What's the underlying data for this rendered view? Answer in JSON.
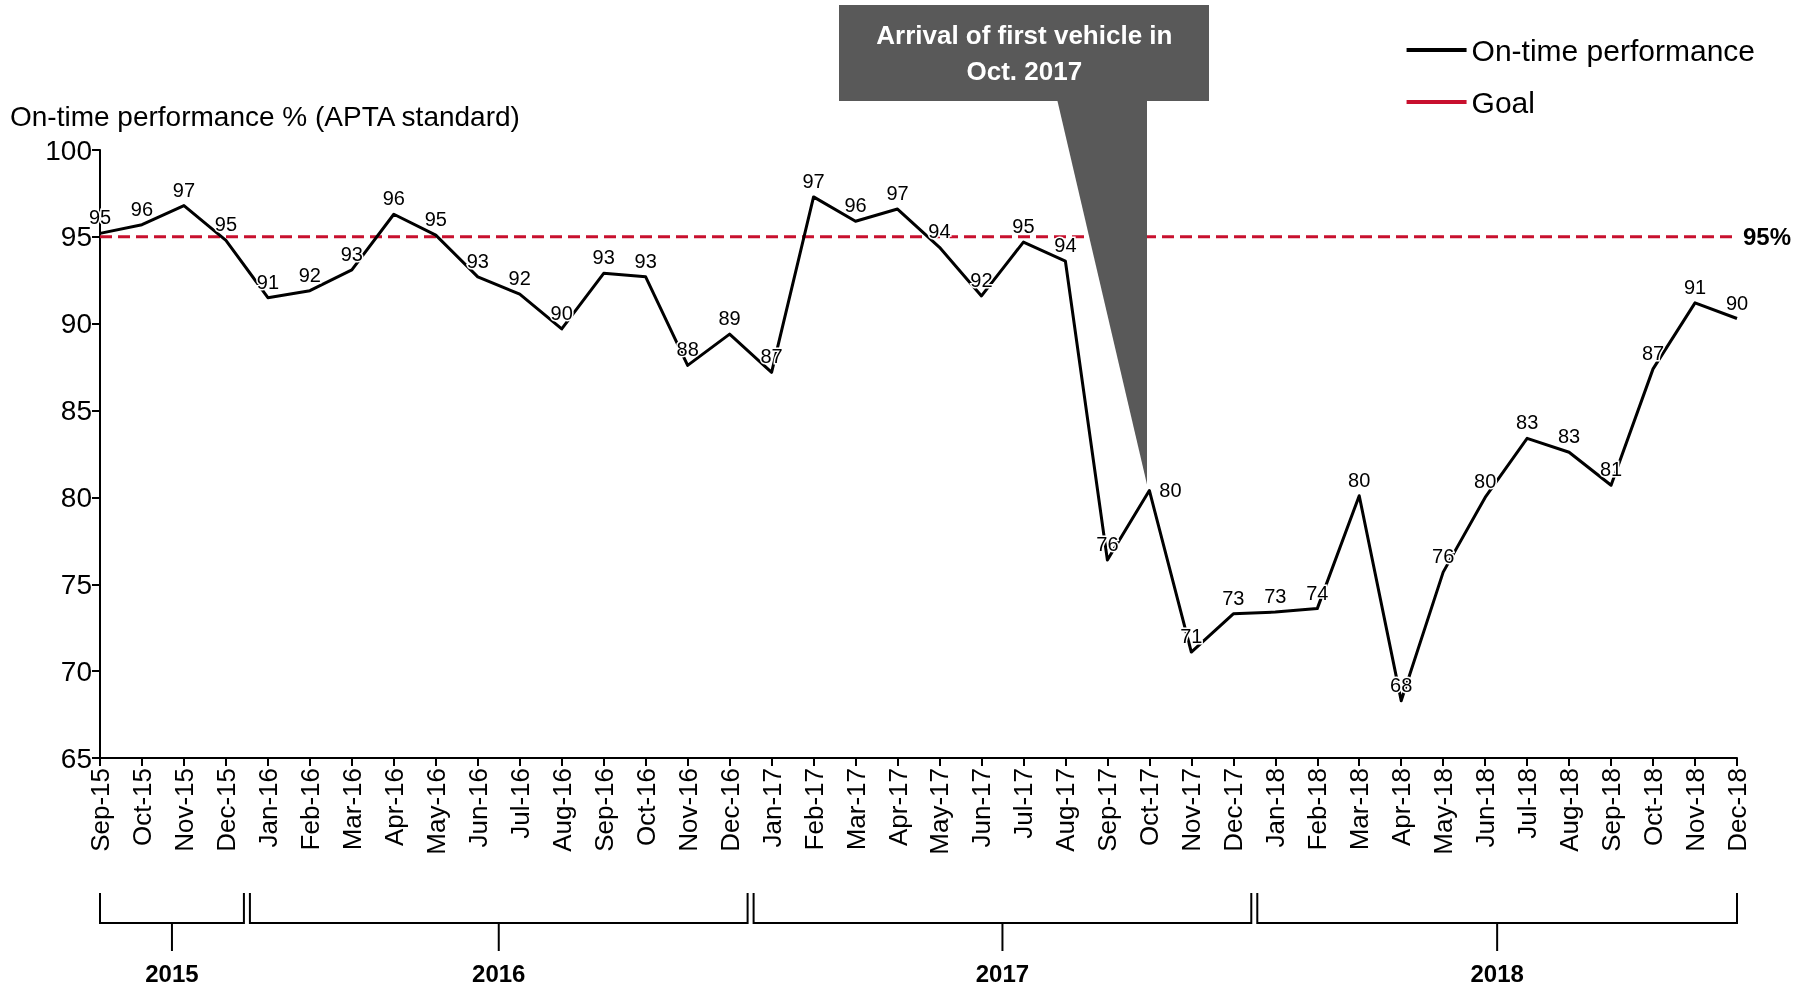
{
  "chart_data": {
    "type": "line",
    "ylabel": "On-time performance % (APTA standard)",
    "categories": [
      "Sep-15",
      "Oct-15",
      "Nov-15",
      "Dec-15",
      "Jan-16",
      "Feb-16",
      "Mar-16",
      "Apr-16",
      "May-16",
      "Jun-16",
      "Jul-16",
      "Aug-16",
      "Sep-16",
      "Oct-16",
      "Nov-16",
      "Dec-16",
      "Jan-17",
      "Feb-17",
      "Mar-17",
      "Apr-17",
      "May-17",
      "Jun-17",
      "Jul-17",
      "Aug-17",
      "Sep-17",
      "Oct-17",
      "Nov-17",
      "Dec-17",
      "Jan-18",
      "Feb-18",
      "Mar-18",
      "Apr-18",
      "May-18",
      "Jun-18",
      "Jul-18",
      "Aug-18",
      "Sep-18",
      "Oct-18",
      "Nov-18",
      "Dec-18"
    ],
    "series": [
      {
        "name": "On-time performance",
        "color": "#000000",
        "line_style": "solid",
        "values": [
          95.2,
          95.7,
          96.8,
          94.8,
          91.5,
          91.9,
          93.1,
          96.3,
          95.1,
          92.7,
          91.7,
          89.7,
          92.9,
          92.7,
          87.6,
          89.4,
          87.2,
          97.3,
          95.9,
          96.6,
          94.4,
          91.6,
          94.7,
          93.6,
          76.4,
          80.4,
          71.1,
          73.3,
          73.4,
          73.6,
          80.1,
          68.3,
          75.7,
          80.0,
          83.4,
          82.6,
          80.7,
          87.4,
          91.2,
          90.3
        ],
        "value_labels": [
          "95",
          "96",
          "97",
          "95",
          "91",
          "92",
          "93",
          "96",
          "95",
          "93",
          "92",
          "90",
          "93",
          "93",
          "88",
          "89",
          "87",
          "97",
          "96",
          "97",
          "94",
          "92",
          "95",
          "94",
          "76",
          "80",
          "71",
          "73",
          "73",
          "74",
          "80",
          "68",
          "76",
          "80",
          "83",
          "83",
          "81",
          "87",
          "91",
          "90"
        ]
      },
      {
        "name": "Goal",
        "color": "#c8102e",
        "line_style": "dashed",
        "values": [
          95,
          95,
          95,
          95,
          95,
          95,
          95,
          95,
          95,
          95,
          95,
          95,
          95,
          95,
          95,
          95,
          95,
          95,
          95,
          95,
          95,
          95,
          95,
          95,
          null,
          95,
          95,
          95,
          95,
          95,
          95,
          95,
          95,
          95,
          95,
          95,
          95,
          95,
          95,
          95
        ],
        "value_labels": [
          null,
          null,
          null,
          null,
          null,
          null,
          null,
          null,
          null,
          null,
          null,
          null,
          null,
          null,
          null,
          null,
          null,
          null,
          null,
          null,
          null,
          null,
          null,
          null,
          null,
          null,
          null,
          null,
          null,
          null,
          null,
          null,
          null,
          null,
          null,
          null,
          null,
          null,
          null,
          "95%"
        ]
      }
    ],
    "ylim": [
      65,
      100
    ],
    "yticks": [
      65,
      70,
      75,
      80,
      85,
      90,
      95,
      100
    ],
    "grid": false,
    "legend": "top right",
    "marker": "none",
    "annotations": [
      {
        "text": "Arrival of first vehicle in Oct. 2017",
        "x": "Oct-17",
        "y": 80.4
      },
      "2015",
      "2016",
      "2017",
      "2018"
    ]
  }
}
